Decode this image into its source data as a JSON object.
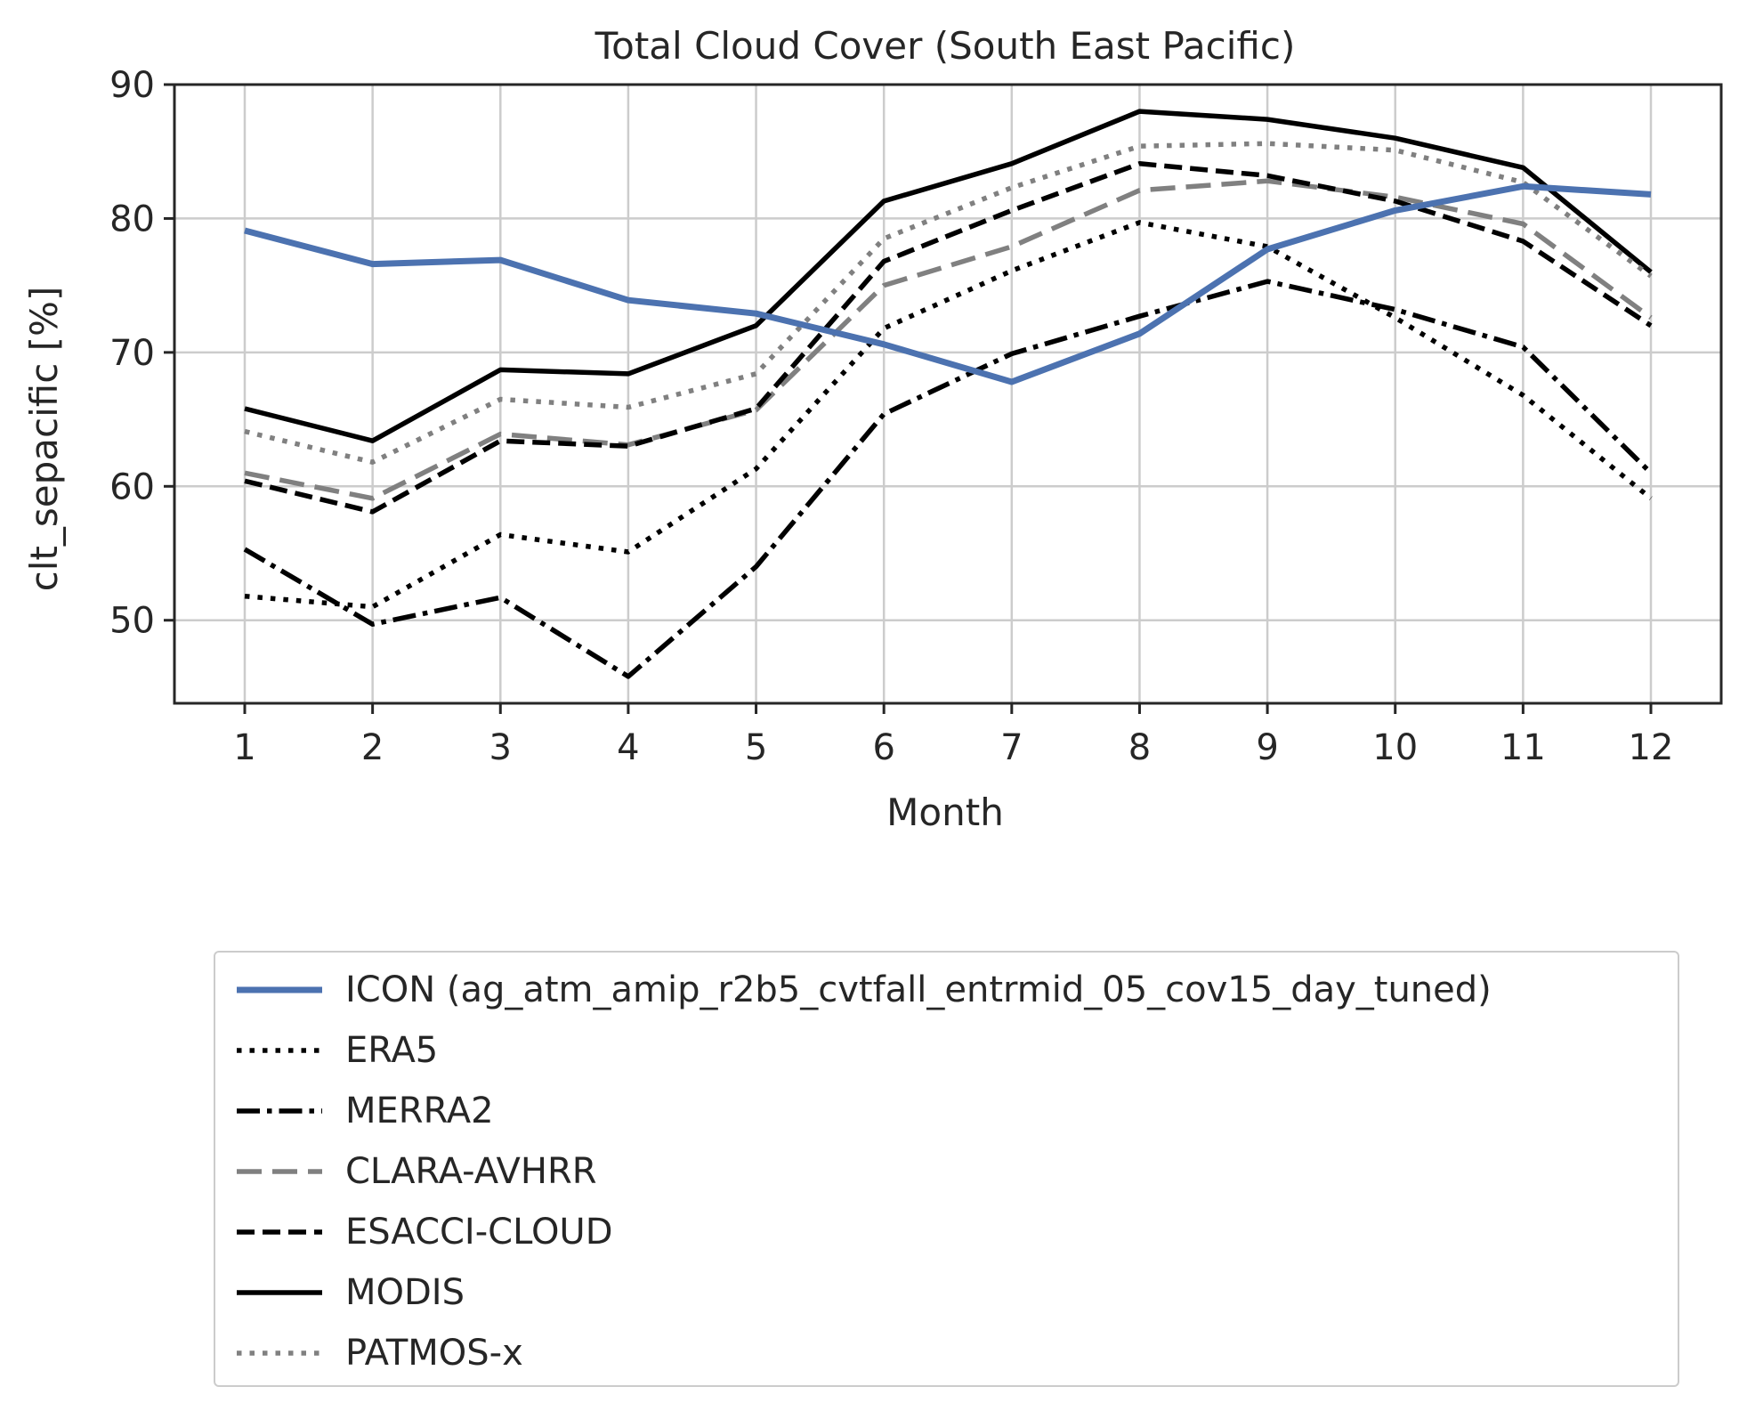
{
  "chart_data": {
    "type": "line",
    "title": "Total Cloud Cover (South East Pacific)",
    "xlabel": "Month",
    "ylabel": "clt_sepacific [%]",
    "x": [
      1,
      2,
      3,
      4,
      5,
      6,
      7,
      8,
      9,
      10,
      11,
      12
    ],
    "xlim": [
      0.45,
      12.55
    ],
    "ylim": [
      43.8,
      90
    ],
    "yticks": [
      50,
      60,
      70,
      80,
      90
    ],
    "grid": true,
    "legend_position": "below",
    "series": [
      {
        "name": "ICON (ag_atm_amip_r2b5_cvtfall_entrmid_05_cov15_day_tuned)",
        "color": "#4c72b0",
        "style": "solid-thick",
        "values": [
          79.1,
          76.6,
          76.9,
          73.9,
          72.9,
          70.6,
          67.8,
          71.4,
          77.7,
          80.6,
          82.4,
          81.8
        ]
      },
      {
        "name": "ERA5",
        "color": "#000000",
        "style": "dotted",
        "values": [
          51.8,
          51.0,
          56.4,
          55.1,
          61.3,
          71.8,
          76.1,
          79.7,
          77.9,
          72.6,
          66.8,
          59.1
        ]
      },
      {
        "name": "MERRA2",
        "color": "#000000",
        "style": "dashdot",
        "values": [
          55.3,
          49.7,
          51.7,
          45.8,
          54.0,
          65.4,
          69.9,
          72.7,
          75.3,
          73.2,
          70.4,
          61.0
        ]
      },
      {
        "name": "CLARA-AVHRR",
        "color": "#808080",
        "style": "dashed-long",
        "values": [
          61.0,
          59.1,
          63.9,
          63.1,
          65.7,
          75.0,
          77.9,
          82.1,
          82.8,
          81.6,
          79.6,
          72.6
        ]
      },
      {
        "name": "ESACCI-CLOUD",
        "color": "#000000",
        "style": "dashed",
        "values": [
          60.4,
          58.1,
          63.4,
          63.0,
          65.8,
          76.8,
          80.6,
          84.1,
          83.2,
          81.3,
          78.3,
          72.0
        ]
      },
      {
        "name": "MODIS",
        "color": "#000000",
        "style": "solid",
        "values": [
          65.8,
          63.4,
          68.7,
          68.4,
          72.0,
          81.3,
          84.1,
          88.0,
          87.4,
          86.0,
          83.8,
          76.0
        ]
      },
      {
        "name": "PATMOS-x",
        "color": "#808080",
        "style": "dotted",
        "values": [
          64.1,
          61.8,
          66.5,
          65.9,
          68.4,
          78.5,
          82.3,
          85.4,
          85.6,
          85.1,
          82.7,
          75.7
        ]
      }
    ]
  }
}
